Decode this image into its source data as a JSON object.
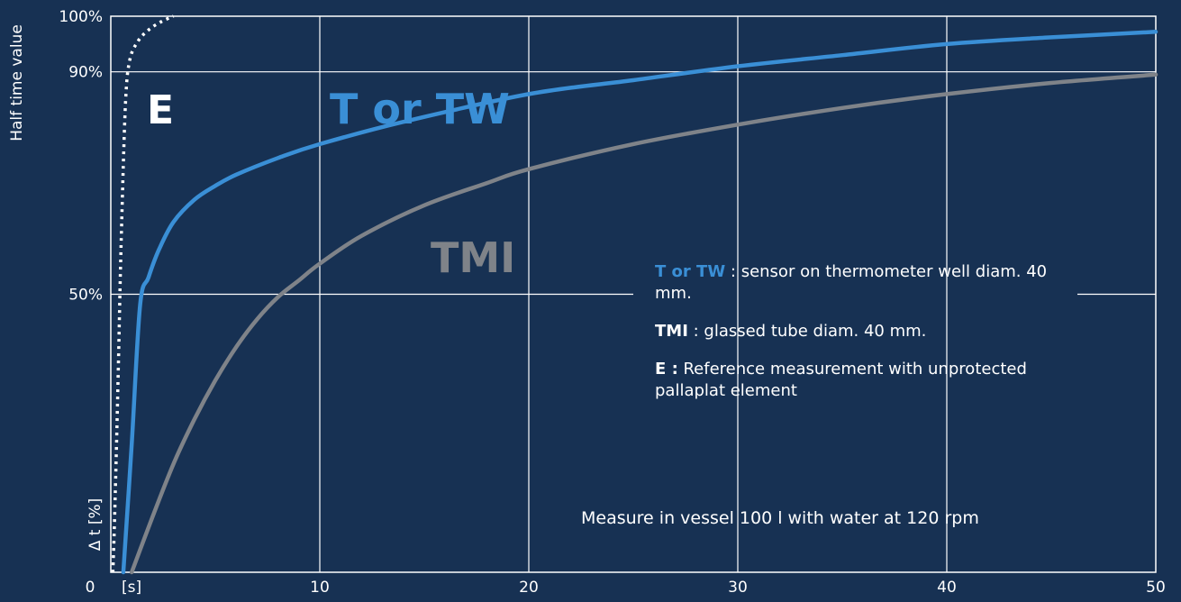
{
  "colors": {
    "background": "#173153",
    "t_or_tw": "#3a8fd6",
    "tmi": "#7f8389",
    "e": "#ffffff",
    "grid": "#ffffff"
  },
  "chart_data": {
    "type": "line",
    "ylabel": "Half time value",
    "ylabel_axis": "Δ t [%]",
    "xunit": "[s]",
    "xlim": [
      0,
      50
    ],
    "ylim": [
      0,
      100
    ],
    "x_ticks": [
      "0",
      "10",
      "20",
      "30",
      "40",
      "50"
    ],
    "y_ticks": [
      {
        "value": 50,
        "label": "50%"
      },
      {
        "value": 90,
        "label": "90%"
      },
      {
        "value": 100,
        "label": "100%"
      }
    ],
    "grid": true,
    "series": [
      {
        "name": "E",
        "style": "dotted",
        "x": [
          0.1,
          0.2,
          0.35,
          0.5,
          0.7,
          0.9,
          1.3,
          1.8,
          2.4,
          3.0
        ],
        "y": [
          0,
          12,
          35,
          60,
          84,
          92,
          95.5,
          97.5,
          99,
          100
        ]
      },
      {
        "name": "T or TW",
        "style": "solid",
        "x": [
          0.6,
          1.0,
          1.4,
          1.8,
          2.3,
          3.0,
          4.0,
          5.0,
          6.0,
          8.0,
          10.0,
          14.0,
          20.0,
          25.0,
          30.0,
          35.0,
          40.0,
          45.0,
          50.0
        ],
        "y": [
          0,
          23,
          48,
          53,
          58,
          63,
          67,
          69.5,
          71.5,
          74.5,
          77,
          81,
          86,
          88.5,
          91,
          93,
          95,
          96.2,
          97.2
        ]
      },
      {
        "name": "TMI",
        "style": "solid",
        "x": [
          1.0,
          2.0,
          3.0,
          4.0,
          5.0,
          6.0,
          7.0,
          8.0,
          9.0,
          10.0,
          12.0,
          15.0,
          18.0,
          20.0,
          25.0,
          30.0,
          35.0,
          40.0,
          45.0,
          50.0
        ],
        "y": [
          0,
          10,
          19.5,
          27.5,
          34.5,
          40.5,
          45.5,
          49.5,
          52.5,
          55.5,
          60.5,
          66,
          70,
          72.5,
          77,
          80.5,
          83.5,
          86,
          88,
          89.5
        ]
      }
    ],
    "annotations": {
      "e_label": "E",
      "t_label": "T or TW",
      "tmi_label": "TMI"
    }
  },
  "legend_box": {
    "t_name": "T or TW",
    "t_desc": " : sensor on thermometer well diam. 40 mm.",
    "tmi_name": "TMI",
    "tmi_desc": " : glassed tube diam. 40 mm.",
    "e_name": "E :",
    "e_desc": " Reference measurement with unprotected pallaplat element"
  },
  "note": "Measure in vessel 100 l with water at 120 rpm"
}
